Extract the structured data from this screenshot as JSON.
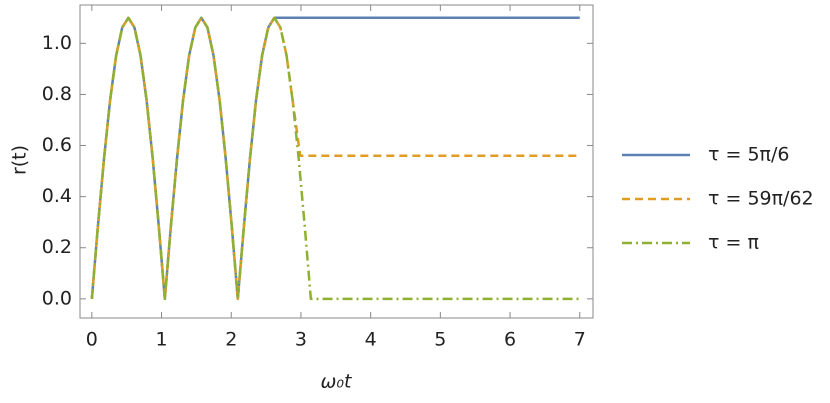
{
  "chart_data": {
    "type": "line",
    "xlabel": "ω₀t",
    "ylabel": "r(t)",
    "xlim": [
      -0.17,
      7.19
    ],
    "ylim": [
      -0.075,
      1.15
    ],
    "xticks": [
      0,
      1,
      2,
      3,
      4,
      5,
      6,
      7
    ],
    "yticks": [
      {
        "value": 0,
        "label": "0.0"
      },
      {
        "value": 0.2,
        "label": "0.2"
      },
      {
        "value": 0.4,
        "label": "0.4"
      },
      {
        "value": 0.6,
        "label": "0.6"
      },
      {
        "value": 0.8,
        "label": "0.8"
      },
      {
        "value": 1,
        "label": "1.0"
      }
    ],
    "legend": "right",
    "series": [
      {
        "name": "τ = 5π/6",
        "color": "#5e81b5",
        "dash": "solid",
        "x": [
          0,
          0.087,
          0.175,
          0.262,
          0.349,
          0.436,
          0.524,
          0.611,
          0.698,
          0.785,
          0.873,
          0.96,
          1.047,
          1.134,
          1.222,
          1.309,
          1.396,
          1.484,
          1.571,
          1.658,
          1.745,
          1.833,
          1.92,
          2.007,
          2.094,
          2.182,
          2.269,
          2.356,
          2.443,
          2.531,
          2.618,
          7
        ],
        "values": [
          0,
          0.285,
          0.55,
          0.778,
          0.953,
          1.062,
          1.1,
          1.062,
          0.953,
          0.778,
          0.55,
          0.285,
          0,
          0.285,
          0.55,
          0.778,
          0.953,
          1.062,
          1.1,
          1.062,
          0.953,
          0.778,
          0.55,
          0.285,
          0,
          0.285,
          0.55,
          0.778,
          0.953,
          1.062,
          1.1,
          1.1
        ]
      },
      {
        "name": "τ = 59π/62",
        "color": "#e19c24",
        "dash": "dashed",
        "x": [
          0,
          0.087,
          0.175,
          0.262,
          0.349,
          0.436,
          0.524,
          0.611,
          0.698,
          0.785,
          0.873,
          0.96,
          1.047,
          1.134,
          1.222,
          1.309,
          1.396,
          1.484,
          1.571,
          1.658,
          1.745,
          1.833,
          1.92,
          2.007,
          2.094,
          2.182,
          2.269,
          2.356,
          2.443,
          2.531,
          2.618,
          2.705,
          2.793,
          2.88,
          2.99,
          7
        ],
        "values": [
          0,
          0.285,
          0.55,
          0.778,
          0.953,
          1.062,
          1.1,
          1.062,
          0.953,
          0.778,
          0.55,
          0.285,
          0,
          0.285,
          0.55,
          0.778,
          0.953,
          1.062,
          1.1,
          1.062,
          0.953,
          0.778,
          0.55,
          0.285,
          0,
          0.285,
          0.55,
          0.778,
          0.953,
          1.062,
          1.1,
          1.062,
          0.953,
          0.778,
          0.56,
          0.56
        ]
      },
      {
        "name": "τ = π",
        "color": "#8fb032",
        "dash": "dashdot",
        "x": [
          0,
          0.087,
          0.175,
          0.262,
          0.349,
          0.436,
          0.524,
          0.611,
          0.698,
          0.785,
          0.873,
          0.96,
          1.047,
          1.134,
          1.222,
          1.309,
          1.396,
          1.484,
          1.571,
          1.658,
          1.745,
          1.833,
          1.92,
          2.007,
          2.094,
          2.182,
          2.269,
          2.356,
          2.443,
          2.531,
          2.618,
          2.705,
          2.793,
          2.88,
          2.967,
          3.054,
          3.142,
          7
        ],
        "values": [
          0,
          0.285,
          0.55,
          0.778,
          0.953,
          1.062,
          1.1,
          1.062,
          0.953,
          0.778,
          0.55,
          0.285,
          0,
          0.285,
          0.55,
          0.778,
          0.953,
          1.062,
          1.1,
          1.062,
          0.953,
          0.778,
          0.55,
          0.285,
          0,
          0.285,
          0.55,
          0.778,
          0.953,
          1.062,
          1.1,
          1.062,
          0.953,
          0.778,
          0.55,
          0.285,
          0,
          0
        ]
      }
    ]
  }
}
